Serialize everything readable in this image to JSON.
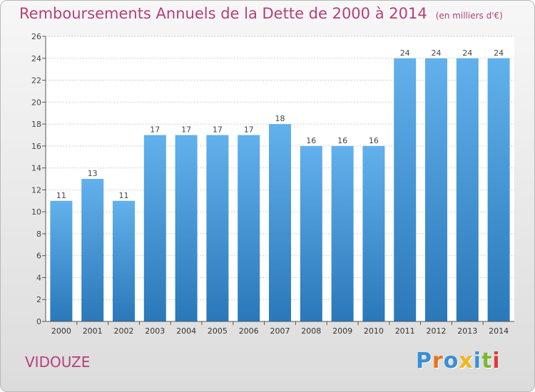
{
  "header": {
    "title": "Remboursements Annuels de la Dette de 2000 à 2014",
    "unit": "(en milliers d'€)"
  },
  "footer": {
    "town": "VIDOUZE",
    "logo_letters": [
      "P",
      "r",
      "o",
      "x",
      "i",
      "t",
      "i"
    ],
    "logo_colors": [
      "#3a8fd4",
      "#e8731c",
      "#3a8fd4",
      "#f2b51b",
      "#3a8fd4",
      "#7bb73a",
      "#e03a3a"
    ]
  },
  "colors": {
    "title": "#b5407b",
    "bar_top": "#62b1ec",
    "bar_bottom": "#2a78b9",
    "grid": "#cfcfcf"
  },
  "chart_data": {
    "type": "bar",
    "title": "Remboursements Annuels de la Dette de 2000 à 2014",
    "ylabel": "(en milliers d'€)",
    "xlabel": "",
    "categories": [
      "2000",
      "2001",
      "2002",
      "2003",
      "2004",
      "2005",
      "2006",
      "2007",
      "2008",
      "2009",
      "2010",
      "2011",
      "2012",
      "2013",
      "2014"
    ],
    "values": [
      11,
      13,
      11,
      17,
      17,
      17,
      17,
      18,
      16,
      16,
      16,
      24,
      24,
      24,
      24
    ],
    "ylim": [
      0,
      26
    ],
    "yticks": [
      0,
      2,
      4,
      6,
      8,
      10,
      12,
      14,
      16,
      18,
      20,
      22,
      24,
      26
    ],
    "grid": true
  }
}
